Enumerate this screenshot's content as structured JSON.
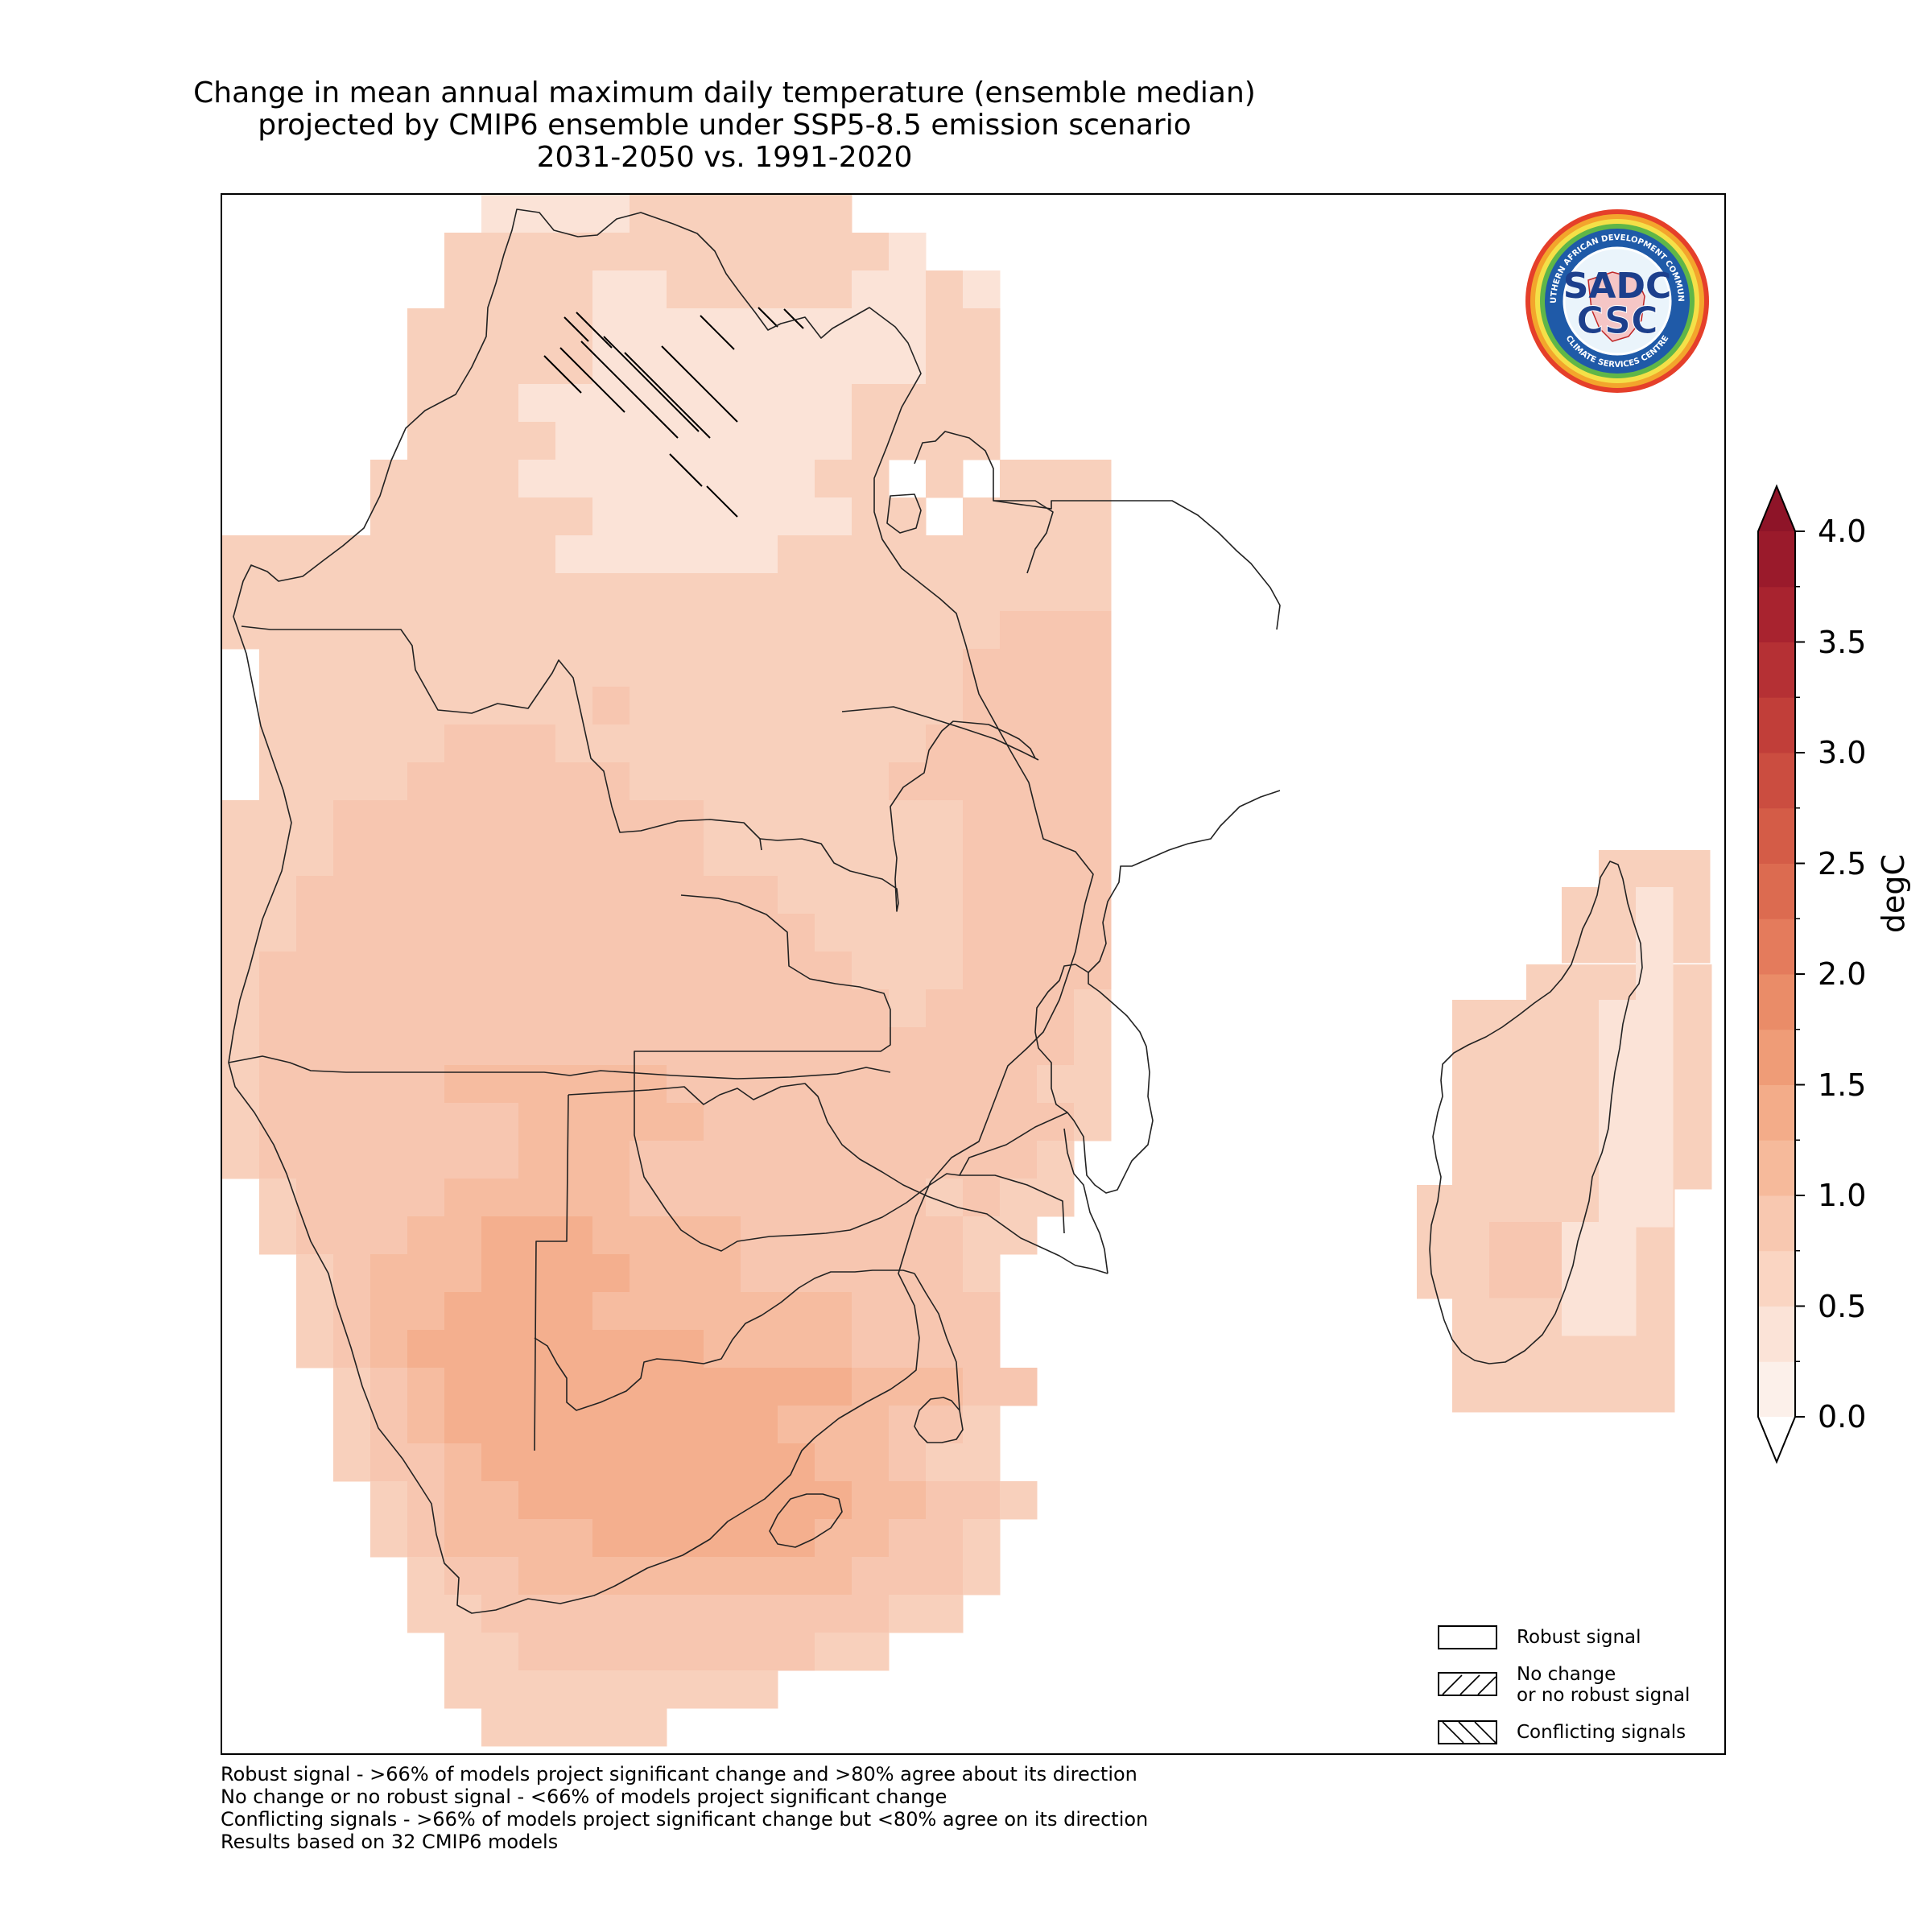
{
  "title": {
    "line1": "Change in mean annual maximum daily temperature (ensemble median)",
    "line2": "projected by CMIP6 ensemble under SSP5-8.5 emission scenario",
    "line3": "2031-2050 vs. 1991-2020"
  },
  "logo": {
    "ring_top_text": "SOUTHERN AFRICAN DEVELOPMENT COMMUNITY",
    "ring_bottom_text": "CLIMATE SERVICES CENTRE",
    "center_top": "SADC",
    "center_bottom": "CSC"
  },
  "legend": {
    "robust_label": "Robust signal",
    "no_change_label_line1": "No change",
    "no_change_label_line2": "or no robust signal",
    "conflicting_label": "Conflicting signals"
  },
  "colorbar": {
    "label": "degC",
    "min": 0.0,
    "max": 4.0,
    "step": 0.25,
    "extend": "both",
    "tick_labels": [
      "0.0",
      "0.5",
      "1.0",
      "1.5",
      "2.0",
      "2.5",
      "3.0",
      "3.5",
      "4.0"
    ],
    "colors": [
      "#fcf0ea",
      "#fbe3d7",
      "#fad5c2",
      "#f8c8b0",
      "#f6ba9b",
      "#f3ac89",
      "#ef9c77",
      "#ea8c68",
      "#e47b5c",
      "#dc6b50",
      "#d45c47",
      "#cb4d40",
      "#c13e39",
      "#b53034",
      "#a8232f",
      "#9a1a2b"
    ],
    "under_color": "#ffffff",
    "over_color": "#8e1428"
  },
  "footnotes": {
    "line1": "Robust signal - >66% of models project significant change and >80% agree about its direction",
    "line2": "No change or no robust signal - <66% of models project significant change",
    "line3": "Conflicting signals - >66% of models project significant change but <80% agree on its direction",
    "line4": "Results based on 32 CMIP6 models"
  },
  "map": {
    "region": "Southern Africa (SADC)",
    "value_range_degC": [
      0.5,
      2.0
    ],
    "signal": "Robust signal",
    "conflicting_signal_area": "northern DR Congo"
  }
}
